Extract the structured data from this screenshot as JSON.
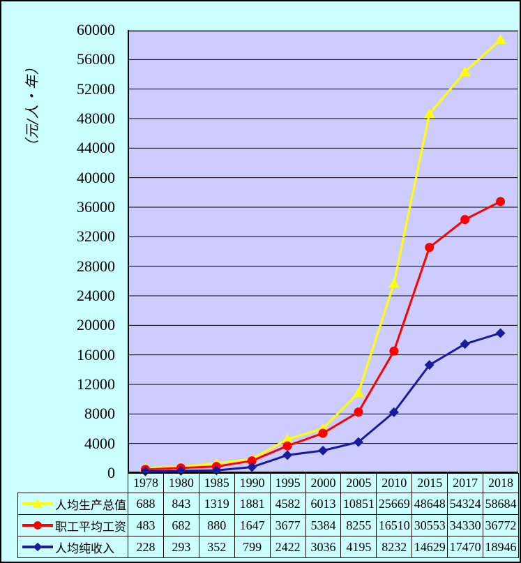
{
  "colors": {
    "page_background": "#CCFFFF",
    "plot_background": "#CCCCFF",
    "gridline": "#000000",
    "axis_line": "#000000",
    "plot_frame": "#808080",
    "table_border": "#000000"
  },
  "chart_data": {
    "type": "line",
    "title": "",
    "ylabel": "（元/人・年）",
    "xlabel": "",
    "ylim": [
      0,
      60000
    ],
    "y_tick_step": 4000,
    "y_ticks": [
      "0",
      "4000",
      "8000",
      "12000",
      "16000",
      "20000",
      "24000",
      "28000",
      "32000",
      "36000",
      "40000",
      "44000",
      "48000",
      "52000",
      "56000",
      "60000"
    ],
    "grid": true,
    "legend_position": "data-table-left",
    "data_table_attached": true,
    "categories": [
      "1978",
      "1980",
      "1985",
      "1990",
      "1995",
      "2000",
      "2005",
      "2010",
      "2015",
      "2017",
      "2018"
    ],
    "series": [
      {
        "name": "人均生产总值",
        "color": "#FFFF00",
        "marker": "triangle",
        "values": [
          688,
          843,
          1319,
          1881,
          4582,
          6013,
          10851,
          25669,
          48648,
          54324,
          58684
        ]
      },
      {
        "name": "职工平均工资",
        "color": "#FF0000",
        "marker": "circle",
        "values": [
          483,
          682,
          880,
          1647,
          3677,
          5384,
          8255,
          16510,
          30553,
          34330,
          36772
        ]
      },
      {
        "name": "人均纯收入",
        "color": "#1A1A9C",
        "marker": "diamond",
        "values": [
          228,
          293,
          352,
          799,
          2422,
          3036,
          4195,
          8232,
          14629,
          17470,
          18946
        ]
      }
    ]
  }
}
